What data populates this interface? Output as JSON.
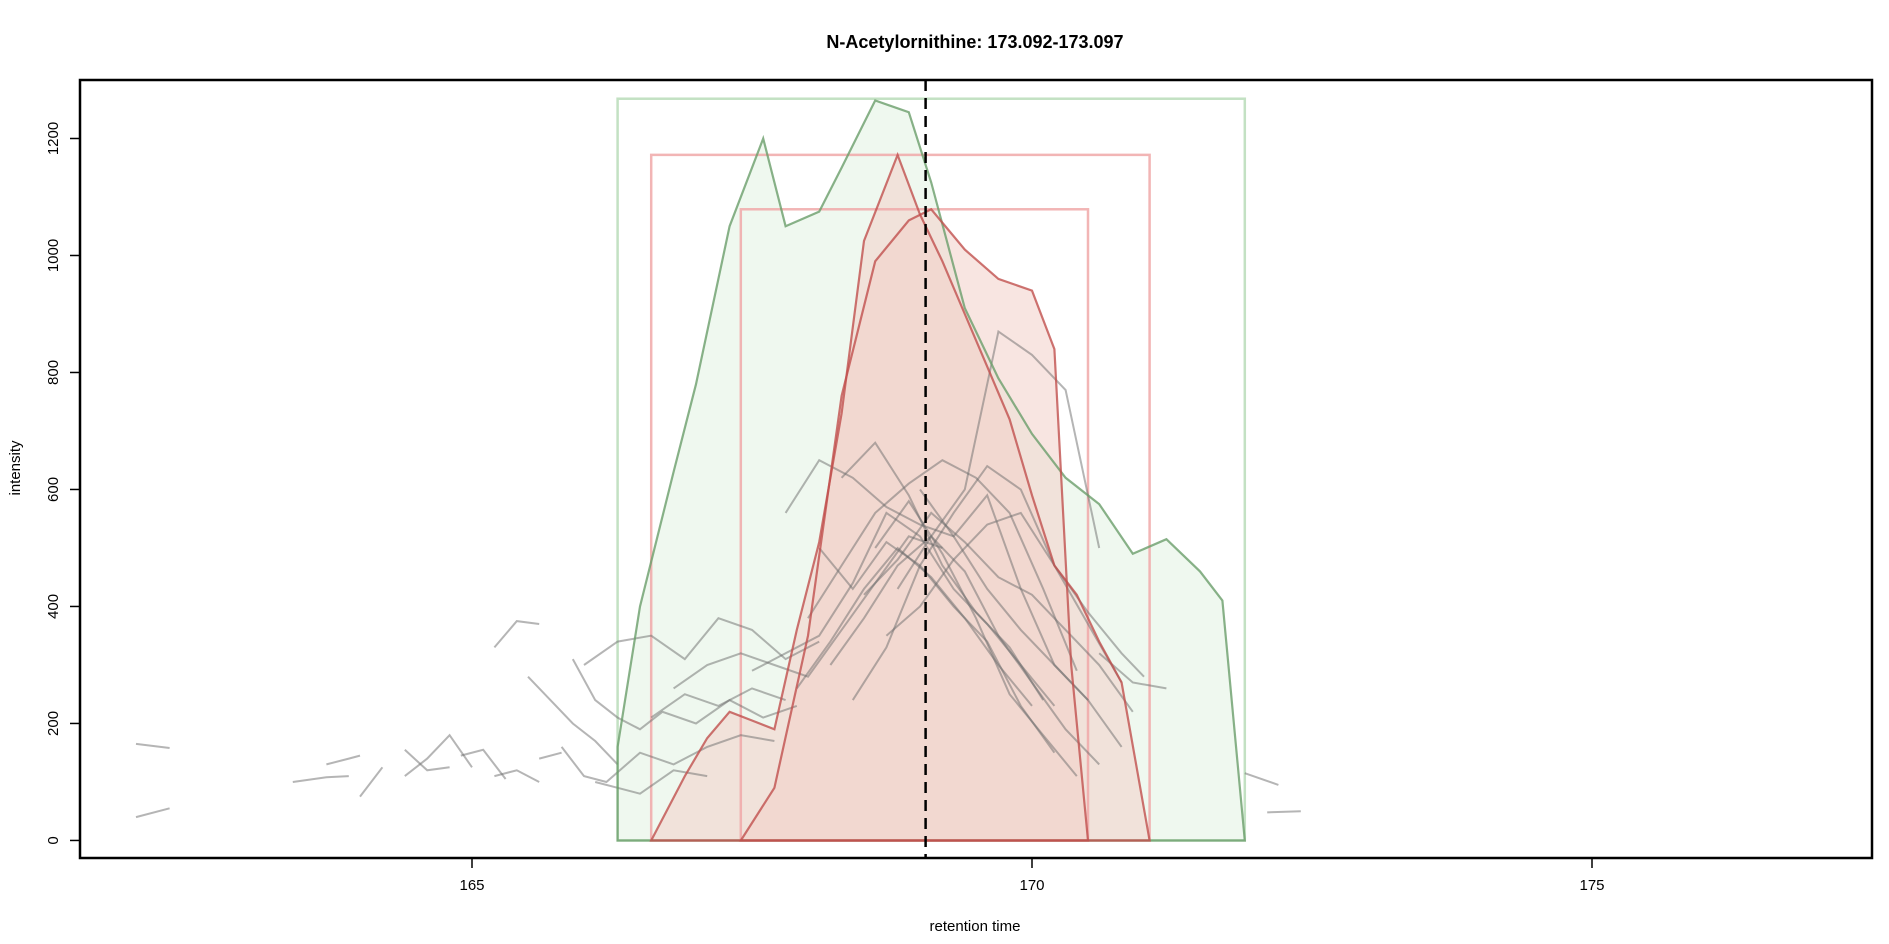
{
  "chart_data": {
    "type": "line",
    "title": "N-Acetylornithine: 173.092-173.097",
    "xlabel": "retention time",
    "ylabel": "intensity",
    "xlim": [
      161.5,
      177.5
    ],
    "ylim": [
      -30,
      1300
    ],
    "x_ticks": [
      165,
      170,
      175
    ],
    "x_tick_labels": [
      "165",
      "170",
      "175"
    ],
    "y_ticks": [
      0,
      200,
      400,
      600,
      800,
      1000,
      1200
    ],
    "y_tick_labels": [
      "0",
      "200",
      "400",
      "600",
      "800",
      "1000",
      "1200"
    ],
    "grid": false,
    "legend": "none",
    "reference_line": {
      "x": 169.05,
      "style": "dashed",
      "color": "#000000"
    },
    "colors": {
      "green_line": "#6a9e6a",
      "green_fill": "#eaf5ea",
      "green_box": "#b9dcb9",
      "red_line": "#c0504d",
      "red_fill": "#f3cfc9",
      "red_box": "#f0a8a8",
      "gray_line": "#6b6b6b"
    },
    "peak_boxes": [
      {
        "color": "green",
        "xmin": 166.3,
        "xmax": 171.9,
        "ymax": 1268
      },
      {
        "color": "red",
        "xmin": 166.6,
        "xmax": 171.05,
        "ymax": 1172
      },
      {
        "color": "red",
        "xmin": 167.4,
        "xmax": 170.5,
        "ymax": 1079
      }
    ],
    "series": [
      {
        "color": "green",
        "filled": true,
        "x": [
          166.3,
          166.5,
          166.8,
          167.0,
          167.3,
          167.6,
          167.8,
          168.1,
          168.3,
          168.6,
          168.9,
          169.1,
          169.4,
          169.7,
          170.0,
          170.3,
          170.6,
          170.9,
          171.2,
          171.5,
          171.7,
          171.9
        ],
        "y": [
          160,
          400,
          630,
          780,
          1050,
          1200,
          1050,
          1075,
          1150,
          1265,
          1245,
          1125,
          910,
          790,
          695,
          620,
          575,
          490,
          515,
          460,
          410,
          0
        ]
      },
      {
        "color": "red",
        "filled": true,
        "x": [
          166.6,
          166.9,
          167.1,
          167.3,
          167.5,
          167.7,
          167.9,
          168.1,
          168.3,
          168.5,
          168.8,
          169.0,
          169.2,
          169.4,
          169.6,
          169.8,
          170.0,
          170.2,
          170.4,
          170.6,
          170.8,
          171.05
        ],
        "y": [
          0,
          110,
          175,
          220,
          205,
          190,
          360,
          510,
          730,
          1025,
          1172,
          1070,
          990,
          900,
          810,
          720,
          590,
          470,
          420,
          340,
          270,
          0
        ]
      },
      {
        "color": "red",
        "filled": true,
        "x": [
          167.4,
          167.7,
          168.0,
          168.3,
          168.6,
          168.9,
          169.1,
          169.4,
          169.7,
          170.0,
          170.2,
          170.35,
          170.5
        ],
        "y": [
          0,
          90,
          350,
          760,
          990,
          1060,
          1079,
          1010,
          960,
          940,
          840,
          300,
          0
        ]
      },
      {
        "color": "gray",
        "filled": false,
        "x": [
          167.8,
          168.1,
          168.4,
          168.7,
          169.0,
          169.3,
          169.6,
          169.9,
          170.2,
          170.5
        ],
        "y": [
          560,
          650,
          620,
          570,
          540,
          520,
          590,
          430,
          300,
          240
        ]
      },
      {
        "color": "gray",
        "filled": false,
        "x": [
          168.0,
          168.3,
          168.6,
          168.9,
          169.2,
          169.5,
          169.8,
          170.1,
          170.4
        ],
        "y": [
          380,
          470,
          560,
          610,
          650,
          620,
          560,
          430,
          290
        ]
      },
      {
        "color": "gray",
        "filled": false,
        "x": [
          168.2,
          168.5,
          168.8,
          169.1,
          169.4,
          169.7,
          170.0,
          170.3,
          170.6
        ],
        "y": [
          300,
          380,
          470,
          520,
          600,
          870,
          830,
          770,
          500
        ]
      },
      {
        "color": "gray",
        "filled": false,
        "x": [
          167.5,
          167.8,
          168.1,
          168.4,
          168.7,
          169.0,
          169.3,
          169.6,
          169.9,
          170.2
        ],
        "y": [
          290,
          320,
          350,
          440,
          560,
          520,
          430,
          370,
          300,
          230
        ]
      },
      {
        "color": "gray",
        "filled": false,
        "x": [
          168.4,
          168.7,
          169.0,
          169.3,
          169.6,
          169.9,
          170.2,
          170.5,
          170.8
        ],
        "y": [
          240,
          330,
          470,
          560,
          640,
          600,
          470,
          370,
          270
        ]
      },
      {
        "color": "gray",
        "filled": false,
        "x": [
          168.6,
          168.9,
          169.2,
          169.5,
          169.8,
          170.1,
          170.4
        ],
        "y": [
          500,
          580,
          490,
          380,
          250,
          180,
          110
        ]
      },
      {
        "color": "gray",
        "filled": false,
        "x": [
          168.1,
          168.4,
          168.7,
          169.0,
          169.3,
          169.6,
          169.9,
          170.2
        ],
        "y": [
          500,
          430,
          510,
          470,
          400,
          340,
          230,
          150
        ]
      },
      {
        "color": "gray",
        "filled": false,
        "x": [
          168.8,
          169.1,
          169.4,
          169.7,
          170.0,
          170.3,
          170.6
        ],
        "y": [
          430,
          520,
          460,
          350,
          270,
          190,
          130
        ]
      },
      {
        "color": "gray",
        "filled": false,
        "x": [
          168.5,
          168.8,
          169.1,
          169.4,
          169.7,
          170.0,
          170.3,
          170.6,
          170.9
        ],
        "y": [
          420,
          480,
          560,
          510,
          450,
          420,
          360,
          300,
          220
        ]
      },
      {
        "color": "gray",
        "filled": false,
        "x": [
          167.9,
          168.2,
          168.5,
          168.8,
          169.1,
          169.4,
          169.7,
          170.0
        ],
        "y": [
          260,
          340,
          430,
          500,
          450,
          380,
          300,
          230
        ]
      },
      {
        "color": "gray",
        "filled": false,
        "x": [
          169.0,
          169.3,
          169.6,
          169.9,
          170.2,
          170.5,
          170.8
        ],
        "y": [
          600,
          520,
          430,
          360,
          300,
          240,
          160
        ]
      },
      {
        "color": "gray",
        "filled": false,
        "x": [
          168.3,
          168.6,
          168.9,
          169.2,
          169.5,
          169.8,
          170.1
        ],
        "y": [
          620,
          680,
          590,
          470,
          390,
          330,
          240
        ]
      },
      {
        "color": "gray",
        "filled": false,
        "x": [
          168.7,
          169.0,
          169.3,
          169.6,
          169.9,
          170.2,
          170.5,
          170.8,
          171.0
        ],
        "y": [
          350,
          400,
          480,
          540,
          560,
          470,
          390,
          320,
          280
        ]
      },
      {
        "color": "gray",
        "filled": false,
        "x": [
          166.8,
          167.1,
          167.4,
          167.7,
          168.0,
          168.3,
          168.6,
          168.9,
          169.2
        ],
        "y": [
          260,
          300,
          320,
          300,
          280,
          360,
          440,
          520,
          500
        ]
      },
      {
        "color": "gray",
        "filled": false,
        "x": [
          166.6,
          166.9,
          167.2,
          167.5,
          167.8
        ],
        "y": [
          210,
          250,
          230,
          260,
          240
        ]
      },
      {
        "color": "gray",
        "filled": false,
        "x": [
          166.0,
          166.3,
          166.6,
          166.9,
          167.2,
          167.5,
          167.8,
          168.1
        ],
        "y": [
          300,
          340,
          350,
          310,
          380,
          360,
          310,
          340
        ]
      },
      {
        "color": "gray",
        "filled": false,
        "x": [
          165.8,
          166.0,
          166.2,
          166.5,
          166.8,
          167.1,
          167.4,
          167.7
        ],
        "y": [
          160,
          110,
          100,
          150,
          130,
          160,
          180,
          170
        ]
      },
      {
        "color": "gray",
        "filled": false,
        "x": [
          165.9,
          166.1,
          166.3,
          166.5,
          166.7,
          167.0,
          167.3,
          167.6,
          167.9
        ],
        "y": [
          310,
          240,
          210,
          190,
          220,
          200,
          240,
          210,
          230
        ]
      },
      {
        "color": "gray",
        "filled": false,
        "x": [
          166.1,
          166.3,
          166.5,
          166.8,
          167.1
        ],
        "y": [
          100,
          90,
          80,
          120,
          110
        ]
      },
      {
        "color": "gray",
        "filled": false,
        "x": [
          165.5,
          165.7,
          165.9,
          166.1,
          166.3
        ],
        "y": [
          280,
          240,
          200,
          170,
          130
        ]
      },
      {
        "color": "gray",
        "filled": false,
        "x": [
          165.2,
          165.4,
          165.6
        ],
        "y": [
          330,
          375,
          370
        ]
      },
      {
        "color": "gray",
        "filled": false,
        "x": [
          170.6,
          170.9,
          171.2
        ],
        "y": [
          320,
          270,
          260
        ]
      },
      {
        "color": "gray",
        "filled": false,
        "x": [
          171.9,
          172.2
        ],
        "y": [
          115,
          95
        ]
      },
      {
        "color": "gray",
        "filled": false,
        "x": [
          172.1,
          172.4
        ],
        "y": [
          48,
          50
        ]
      },
      {
        "color": "gray",
        "filled": false,
        "x": [
          162.0,
          162.3
        ],
        "y": [
          165,
          158
        ]
      },
      {
        "color": "gray",
        "filled": false,
        "x": [
          162.0,
          162.3
        ],
        "y": [
          40,
          55
        ]
      },
      {
        "color": "gray",
        "filled": false,
        "x": [
          163.4,
          163.7,
          163.9
        ],
        "y": [
          100,
          108,
          110
        ]
      },
      {
        "color": "gray",
        "filled": false,
        "x": [
          163.7,
          163.9,
          164.0
        ],
        "y": [
          130,
          140,
          145
        ]
      },
      {
        "color": "gray",
        "filled": false,
        "x": [
          164.0,
          164.2
        ],
        "y": [
          75,
          125
        ]
      },
      {
        "color": "gray",
        "filled": false,
        "x": [
          164.4,
          164.6,
          164.8,
          165.0
        ],
        "y": [
          110,
          140,
          180,
          125
        ]
      },
      {
        "color": "gray",
        "filled": false,
        "x": [
          164.4,
          164.6,
          164.8
        ],
        "y": [
          155,
          120,
          125
        ]
      },
      {
        "color": "gray",
        "filled": false,
        "x": [
          164.9,
          165.1,
          165.3
        ],
        "y": [
          145,
          155,
          105
        ]
      },
      {
        "color": "gray",
        "filled": false,
        "x": [
          165.2,
          165.4,
          165.6
        ],
        "y": [
          110,
          120,
          100
        ]
      },
      {
        "color": "gray",
        "filled": false,
        "x": [
          165.6,
          165.8
        ],
        "y": [
          140,
          150
        ]
      }
    ]
  }
}
